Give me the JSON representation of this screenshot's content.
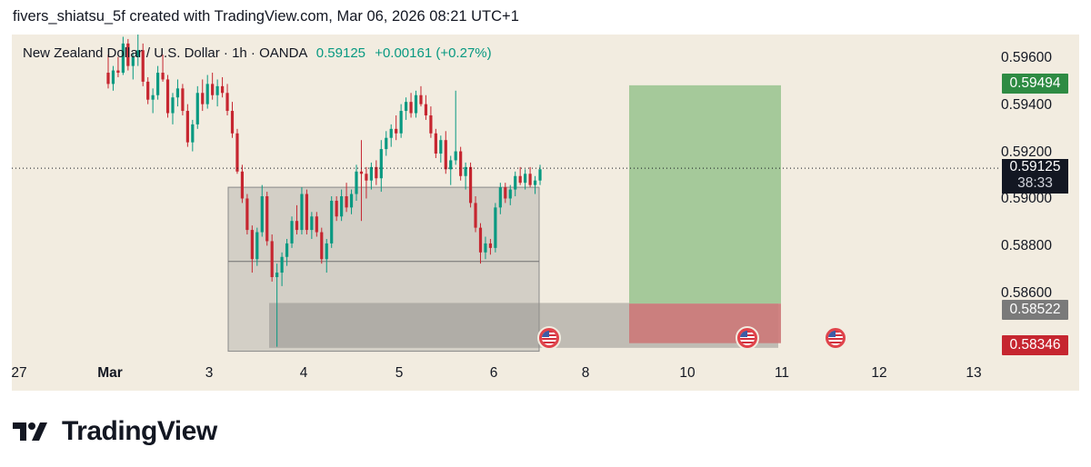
{
  "header": {
    "text": "fivers_shiatsu_5f created with TradingView.com, Mar 06, 2026 08:21 UTC+1"
  },
  "legend": {
    "symbol": "New Zealand Dollar / U.S. Dollar · 1h · OANDA",
    "price": "0.59125",
    "change": "+0.00161 (+0.27%)"
  },
  "price_axis": {
    "labels": [
      "0.59600",
      "0.59400",
      "0.59200",
      "0.58800",
      "0.58600"
    ],
    "partial_label": "0.59000"
  },
  "price_tags": {
    "target": {
      "label": "0.59494",
      "color": "#2e8b43"
    },
    "current": {
      "label": "0.59125",
      "countdown": "38:33",
      "color": "#131722"
    },
    "entry": {
      "label": "0.58522",
      "color": "#7a7a7a"
    },
    "stop": {
      "label": "0.58346",
      "color": "#c62630"
    }
  },
  "time_axis": {
    "labels": [
      "27",
      "Mar",
      "3",
      "4",
      "5",
      "6",
      "8",
      "10",
      "11",
      "12",
      "13"
    ]
  },
  "footer": {
    "brand": "TradingView"
  },
  "chart_data": {
    "type": "candlestick",
    "symbol": "NZDUSD",
    "exchange": "OANDA",
    "interval": "1h",
    "ylim": [
      0.5828,
      0.5972
    ],
    "y_ticks": [
      0.596,
      0.594,
      0.592,
      0.59,
      0.588,
      0.586
    ],
    "last_price": 0.59125,
    "zone_levels": {
      "top": 0.5904,
      "mid": 0.5871,
      "bottom": 0.5831
    },
    "demand_band": [
      0.58525,
      0.58325
    ],
    "position": {
      "entry": 0.58522,
      "target": 0.59494,
      "stop": 0.58346
    },
    "candles_ohlc": [
      [
        0.5955,
        0.5963,
        0.5948,
        0.595
      ],
      [
        0.595,
        0.5958,
        0.5947,
        0.5956
      ],
      [
        0.5956,
        0.5962,
        0.5953,
        0.5955
      ],
      [
        0.5955,
        0.5971,
        0.5954,
        0.5968
      ],
      [
        0.5968,
        0.597,
        0.5956,
        0.5958
      ],
      [
        0.5958,
        0.5964,
        0.5952,
        0.5962
      ],
      [
        0.5962,
        0.5972,
        0.5958,
        0.5965
      ],
      [
        0.5965,
        0.5968,
        0.5949,
        0.5951
      ],
      [
        0.5951,
        0.5953,
        0.5941,
        0.5943
      ],
      [
        0.5943,
        0.5948,
        0.5937,
        0.5945
      ],
      [
        0.5945,
        0.5958,
        0.5943,
        0.5955
      ],
      [
        0.5955,
        0.5963,
        0.5951,
        0.5952
      ],
      [
        0.5952,
        0.5954,
        0.5935,
        0.5937
      ],
      [
        0.5937,
        0.5946,
        0.5932,
        0.5944
      ],
      [
        0.5944,
        0.5952,
        0.594,
        0.5948
      ],
      [
        0.5948,
        0.595,
        0.5936,
        0.5938
      ],
      [
        0.5938,
        0.5941,
        0.5922,
        0.5924
      ],
      [
        0.5924,
        0.5934,
        0.592,
        0.5932
      ],
      [
        0.5932,
        0.5949,
        0.593,
        0.5946
      ],
      [
        0.5946,
        0.5952,
        0.5938,
        0.5941
      ],
      [
        0.5941,
        0.5954,
        0.5939,
        0.595
      ],
      [
        0.595,
        0.5955,
        0.5943,
        0.5945
      ],
      [
        0.5945,
        0.5952,
        0.594,
        0.5949
      ],
      [
        0.5949,
        0.5953,
        0.5944,
        0.5946
      ],
      [
        0.5946,
        0.595,
        0.5936,
        0.5938
      ],
      [
        0.5938,
        0.5942,
        0.5926,
        0.5928
      ],
      [
        0.5928,
        0.593,
        0.591,
        0.5911
      ],
      [
        0.5911,
        0.5914,
        0.5897,
        0.5899
      ],
      [
        0.5899,
        0.5901,
        0.5883,
        0.5885
      ],
      [
        0.5885,
        0.5887,
        0.5866,
        0.5872
      ],
      [
        0.5872,
        0.5886,
        0.5869,
        0.5884
      ],
      [
        0.5884,
        0.5905,
        0.5882,
        0.59
      ],
      [
        0.59,
        0.5902,
        0.5878,
        0.588
      ],
      [
        0.588,
        0.5883,
        0.5862,
        0.5864
      ],
      [
        0.5864,
        0.587,
        0.5833,
        0.5866
      ],
      [
        0.5866,
        0.5875,
        0.586,
        0.5873
      ],
      [
        0.5873,
        0.5881,
        0.5869,
        0.5879
      ],
      [
        0.5879,
        0.5891,
        0.5877,
        0.5889
      ],
      [
        0.5889,
        0.5896,
        0.5883,
        0.5885
      ],
      [
        0.5885,
        0.5904,
        0.5883,
        0.5901
      ],
      [
        0.5901,
        0.5903,
        0.5883,
        0.5885
      ],
      [
        0.5885,
        0.5893,
        0.5881,
        0.5891
      ],
      [
        0.5891,
        0.5893,
        0.5882,
        0.5884
      ],
      [
        0.5884,
        0.5886,
        0.587,
        0.5872
      ],
      [
        0.5872,
        0.5881,
        0.5866,
        0.5879
      ],
      [
        0.5879,
        0.59,
        0.5877,
        0.5898
      ],
      [
        0.5898,
        0.59,
        0.5889,
        0.5891
      ],
      [
        0.5891,
        0.5903,
        0.5889,
        0.59
      ],
      [
        0.59,
        0.5906,
        0.5893,
        0.5895
      ],
      [
        0.5895,
        0.5903,
        0.5892,
        0.5901
      ],
      [
        0.5901,
        0.5914,
        0.5898,
        0.5911
      ],
      [
        0.5911,
        0.5925,
        0.5889,
        0.591
      ],
      [
        0.591,
        0.5913,
        0.5899,
        0.5907
      ],
      [
        0.5907,
        0.5915,
        0.5903,
        0.5913
      ],
      [
        0.5913,
        0.5916,
        0.5905,
        0.5908
      ],
      [
        0.5908,
        0.5925,
        0.5902,
        0.5921
      ],
      [
        0.5921,
        0.5929,
        0.5918,
        0.5926
      ],
      [
        0.5926,
        0.5932,
        0.5922,
        0.593
      ],
      [
        0.593,
        0.5936,
        0.5925,
        0.5928
      ],
      [
        0.5928,
        0.5941,
        0.5926,
        0.5938
      ],
      [
        0.5938,
        0.5944,
        0.5934,
        0.5942
      ],
      [
        0.5942,
        0.5946,
        0.5935,
        0.5937
      ],
      [
        0.5937,
        0.5947,
        0.5935,
        0.5945
      ],
      [
        0.5945,
        0.5949,
        0.594,
        0.5941
      ],
      [
        0.5941,
        0.5945,
        0.5934,
        0.5936
      ],
      [
        0.5936,
        0.594,
        0.5926,
        0.5928
      ],
      [
        0.5928,
        0.593,
        0.5917,
        0.5919
      ],
      [
        0.5919,
        0.5927,
        0.5915,
        0.5925
      ],
      [
        0.5925,
        0.5929,
        0.591,
        0.5912
      ],
      [
        0.5912,
        0.5918,
        0.5905,
        0.5916
      ],
      [
        0.5916,
        0.5947,
        0.5914,
        0.592
      ],
      [
        0.592,
        0.5922,
        0.5907,
        0.5909
      ],
      [
        0.5909,
        0.5915,
        0.5903,
        0.5913
      ],
      [
        0.5913,
        0.5915,
        0.5895,
        0.5897
      ],
      [
        0.5897,
        0.59,
        0.5884,
        0.5886
      ],
      [
        0.5886,
        0.5888,
        0.587,
        0.5875
      ],
      [
        0.5875,
        0.5882,
        0.5872,
        0.5879
      ],
      [
        0.5879,
        0.5881,
        0.5874,
        0.5877
      ],
      [
        0.5877,
        0.5897,
        0.5875,
        0.5895
      ],
      [
        0.5895,
        0.5906,
        0.5892,
        0.5904
      ],
      [
        0.5904,
        0.5906,
        0.5897,
        0.5899
      ],
      [
        0.5899,
        0.5905,
        0.5896,
        0.5903
      ],
      [
        0.5903,
        0.5911,
        0.59,
        0.5909
      ],
      [
        0.5909,
        0.5913,
        0.5905,
        0.5906
      ],
      [
        0.5906,
        0.5912,
        0.5903,
        0.591
      ],
      [
        0.591,
        0.5913,
        0.5904,
        0.5905
      ],
      [
        0.5905,
        0.5909,
        0.5901,
        0.5907
      ],
      [
        0.5907,
        0.5914,
        0.5905,
        0.5912
      ]
    ]
  }
}
